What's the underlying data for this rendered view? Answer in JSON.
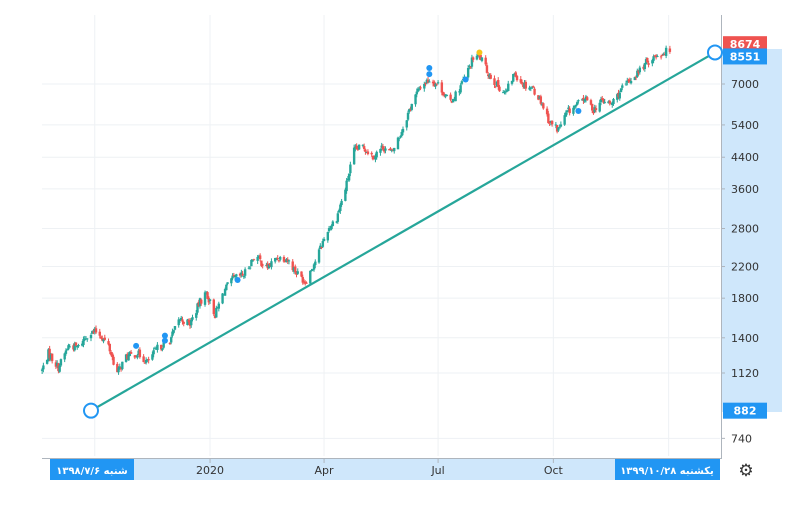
{
  "colors": {
    "up": "#26a69a",
    "down": "#ef5350",
    "trendline": "#26a69a",
    "grid": "#eef1f4",
    "axis_highlight": "#cfe7fb",
    "label_blue": "#2196f3",
    "label_red": "#ef5350",
    "marker_blue": "#2196f3",
    "marker_yellow": "#f5c518"
  },
  "icons": {
    "settings": "gear-icon"
  },
  "chart_data": {
    "type": "candlestick",
    "y_scale": "log",
    "ylim": [
      660,
      9400
    ],
    "y_ticks": [
      740,
      1120,
      1400,
      1800,
      2200,
      2800,
      3600,
      4400,
      5400,
      7000
    ],
    "x_range": [
      "2019-08-20",
      "2021-02-10"
    ],
    "x_ticks": [
      {
        "date": "2020-01-01",
        "label": "2020"
      },
      {
        "date": "2020-04-01",
        "label": "Apr"
      },
      {
        "date": "2020-07-01",
        "label": "Jul"
      },
      {
        "date": "2020-10-01",
        "label": "Oct"
      }
    ],
    "crosshair": {
      "start": {
        "date": "2019-09-28",
        "label": "شنبه ۱۳۹۸/۷/۶"
      },
      "end": {
        "date": "2021-01-17",
        "label": "یکشنبه ۱۳۹۹/۱۰/۲۸"
      }
    },
    "price_labels": [
      {
        "value": 8674,
        "text": "8674",
        "style": "red"
      },
      {
        "value": 8551,
        "text": "8551",
        "style": "blue"
      },
      {
        "value": 882,
        "text": "882",
        "style": "blue"
      }
    ],
    "trendline": {
      "start": {
        "date": "2019-09-28",
        "value": 882
      },
      "end": {
        "date": "2021-02-07",
        "value": 8551
      }
    },
    "price_path": [
      [
        "2019-08-20",
        1140
      ],
      [
        "2019-08-25",
        1270
      ],
      [
        "2019-09-02",
        1160
      ],
      [
        "2019-09-10",
        1330
      ],
      [
        "2019-09-18",
        1320
      ],
      [
        "2019-09-25",
        1430
      ],
      [
        "2019-10-03",
        1460
      ],
      [
        "2019-10-12",
        1330
      ],
      [
        "2019-10-19",
        1120
      ],
      [
        "2019-10-26",
        1240
      ],
      [
        "2019-11-04",
        1270
      ],
      [
        "2019-11-12",
        1200
      ],
      [
        "2019-11-20",
        1310
      ],
      [
        "2019-11-30",
        1380
      ],
      [
        "2019-12-08",
        1580
      ],
      [
        "2019-12-16",
        1530
      ],
      [
        "2019-12-24",
        1760
      ],
      [
        "2019-12-29",
        1860
      ],
      [
        "2020-01-05",
        1620
      ],
      [
        "2020-01-12",
        1880
      ],
      [
        "2020-01-19",
        2030
      ],
      [
        "2020-01-28",
        2090
      ],
      [
        "2020-02-06",
        2370
      ],
      [
        "2020-02-15",
        2180
      ],
      [
        "2020-02-24",
        2330
      ],
      [
        "2020-03-02",
        2320
      ],
      [
        "2020-03-10",
        2120
      ],
      [
        "2020-03-17",
        2000
      ],
      [
        "2020-03-25",
        2280
      ],
      [
        "2020-04-04",
        2780
      ],
      [
        "2020-04-11",
        3000
      ],
      [
        "2020-04-18",
        3600
      ],
      [
        "2020-04-25",
        4580
      ],
      [
        "2020-05-02",
        4720
      ],
      [
        "2020-05-10",
        4420
      ],
      [
        "2020-05-18",
        4700
      ],
      [
        "2020-05-25",
        4520
      ],
      [
        "2020-06-02",
        5200
      ],
      [
        "2020-06-10",
        6200
      ],
      [
        "2020-06-17",
        6900
      ],
      [
        "2020-06-24",
        7200
      ],
      [
        "2020-07-02",
        6950
      ],
      [
        "2020-07-10",
        6200
      ],
      [
        "2020-07-17",
        6700
      ],
      [
        "2020-07-24",
        7500
      ],
      [
        "2020-07-30",
        8400
      ],
      [
        "2020-08-04",
        8250
      ],
      [
        "2020-08-10",
        7500
      ],
      [
        "2020-08-17",
        6950
      ],
      [
        "2020-08-24",
        6600
      ],
      [
        "2020-08-31",
        7500
      ],
      [
        "2020-09-07",
        7000
      ],
      [
        "2020-09-14",
        6850
      ],
      [
        "2020-09-21",
        6300
      ],
      [
        "2020-09-28",
        5500
      ],
      [
        "2020-10-05",
        5250
      ],
      [
        "2020-10-12",
        5850
      ],
      [
        "2020-10-19",
        6100
      ],
      [
        "2020-10-26",
        6400
      ],
      [
        "2020-11-02",
        5950
      ],
      [
        "2020-11-09",
        6300
      ],
      [
        "2020-11-16",
        6150
      ],
      [
        "2020-11-23",
        6650
      ],
      [
        "2020-11-30",
        7100
      ],
      [
        "2020-12-07",
        7500
      ],
      [
        "2020-12-14",
        8000
      ],
      [
        "2020-12-21",
        8350
      ],
      [
        "2020-12-28",
        8550
      ],
      [
        "2021-01-02",
        8674
      ]
    ],
    "markers": [
      {
        "date": "2019-11-03",
        "value": 1330,
        "color": "blue"
      },
      {
        "date": "2019-11-26",
        "value": 1420,
        "color": "blue"
      },
      {
        "date": "2019-11-26",
        "value": 1375,
        "color": "blue"
      },
      {
        "date": "2020-01-23",
        "value": 2020,
        "color": "blue"
      },
      {
        "date": "2020-06-24",
        "value": 7750,
        "color": "blue"
      },
      {
        "date": "2020-06-24",
        "value": 7450,
        "color": "blue"
      },
      {
        "date": "2020-07-23",
        "value": 7200,
        "color": "blue"
      },
      {
        "date": "2020-08-03",
        "value": 8550,
        "color": "yellow"
      },
      {
        "date": "2020-10-21",
        "value": 5900,
        "color": "blue"
      }
    ]
  }
}
